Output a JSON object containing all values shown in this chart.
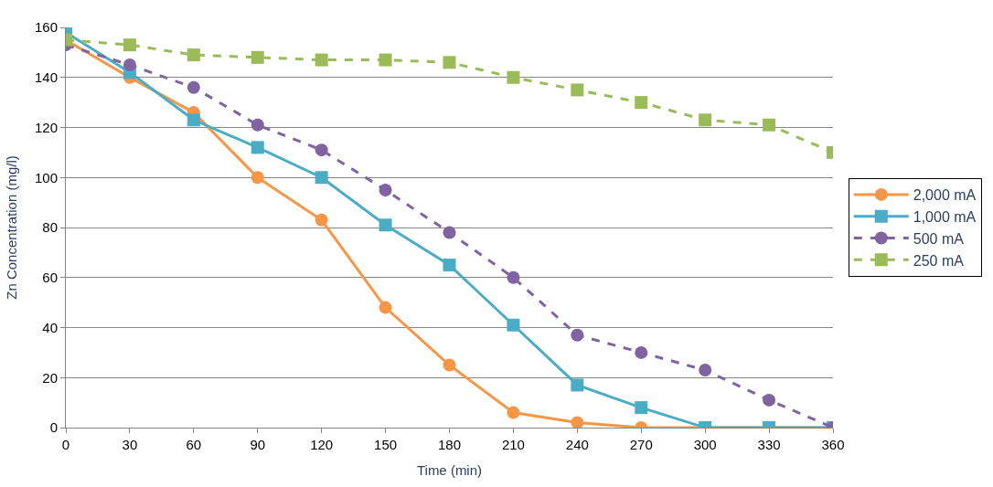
{
  "chart_data": {
    "type": "line",
    "xlabel": "Time (min)",
    "ylabel": "Zn Concentration (mg/l)",
    "x": [
      0,
      30,
      60,
      90,
      120,
      150,
      180,
      210,
      240,
      270,
      300,
      330,
      360
    ],
    "xlim": [
      0,
      360
    ],
    "xticks": [
      0,
      30,
      60,
      90,
      120,
      150,
      180,
      210,
      240,
      270,
      300,
      330,
      360
    ],
    "ylim": [
      0,
      160
    ],
    "yticks": [
      0,
      20,
      40,
      60,
      80,
      100,
      120,
      140,
      160
    ],
    "grid": "y",
    "legend": "right",
    "series": [
      {
        "name": "2,000 mA",
        "color": "#f79646",
        "marker": "circle",
        "line_style": "solid",
        "values": [
          155,
          140,
          126,
          100,
          83,
          48,
          25,
          6,
          2,
          0,
          0,
          0,
          0
        ]
      },
      {
        "name": "1,000 mA",
        "color": "#4bacc6",
        "marker": "square",
        "line_style": "solid",
        "values": [
          158,
          142,
          123,
          112,
          100,
          81,
          65,
          41,
          17,
          8,
          0,
          0,
          0
        ]
      },
      {
        "name": "500 mA",
        "color": "#8064a2",
        "marker": "circle",
        "line_style": "dashed",
        "values": [
          153,
          145,
          136,
          121,
          111,
          95,
          78,
          60,
          37,
          30,
          23,
          11,
          0
        ]
      },
      {
        "name": "250 mA",
        "color": "#9bbb59",
        "marker": "square",
        "line_style": "dashed",
        "values": [
          155,
          153,
          149,
          148,
          147,
          147,
          146,
          140,
          135,
          130,
          123,
          121,
          110
        ]
      }
    ]
  }
}
